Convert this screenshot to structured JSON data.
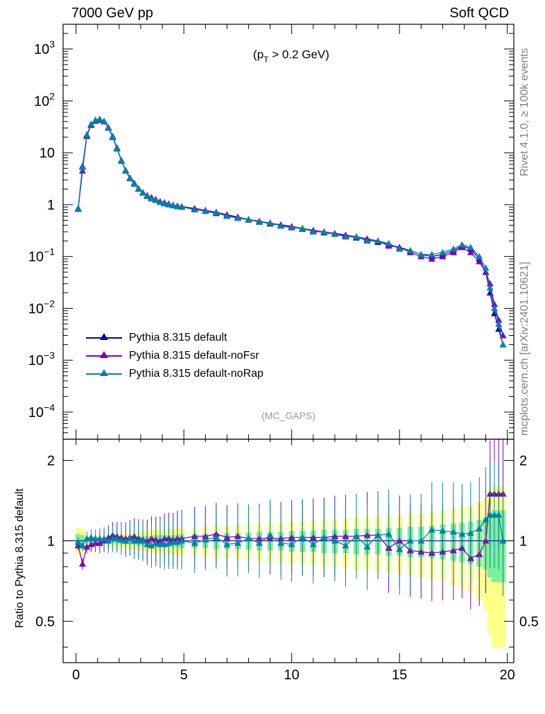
{
  "header": {
    "beam": "7000 GeV pp",
    "process": "Soft QCD",
    "rivet_label": "Rivet 4.1.0, ≥ 100k events",
    "source_label": "mcplots.cern.ch [arXiv:2401.10621]"
  },
  "main_plot": {
    "annotation_pre": "(p",
    "annotation_sub": "T",
    "annotation_post": " > 0.2 GeV)",
    "analysis": "(MC_GAPS)",
    "y_scale": "log",
    "y_tick_labels": [
      "10^-4",
      "10^-3",
      "10^-2",
      "10^-1",
      "1",
      "10",
      "10^2",
      "10^3"
    ]
  },
  "ratio_plot": {
    "ylabel": "Ratio to Pythia 8.315 default",
    "y_tick_labels": [
      "0.5",
      "1",
      "2"
    ],
    "x_tick_labels": [
      "0",
      "5",
      "10",
      "15",
      "20"
    ]
  },
  "legend": [
    {
      "label": "Pythia 8.315 default",
      "color": "#0000cc"
    },
    {
      "label": "Pythia 8.315 default-noFsr",
      "color": "#7b00b4"
    },
    {
      "label": "Pythia 8.315 default-noRap",
      "color": "#0083a8"
    }
  ],
  "chart_data": {
    "type": "line",
    "title": "7000 GeV pp — Soft QCD",
    "xlabel": "",
    "ylabel": "",
    "xlim": [
      -0.6,
      20.3
    ],
    "ylim": [
      3e-05,
      3000
    ],
    "ratio_ylim": [
      0.35,
      2.4
    ],
    "x": [
      0.1,
      0.3,
      0.5,
      0.7,
      0.9,
      1.1,
      1.3,
      1.5,
      1.7,
      1.9,
      2.1,
      2.3,
      2.5,
      2.7,
      2.9,
      3.1,
      3.3,
      3.5,
      3.7,
      3.9,
      4.1,
      4.3,
      4.5,
      4.7,
      4.9,
      5.5,
      6.0,
      6.5,
      7.0,
      7.5,
      8.0,
      8.5,
      9.0,
      9.5,
      10.0,
      10.5,
      11.0,
      11.5,
      12.0,
      12.5,
      13.0,
      13.5,
      14.0,
      14.5,
      15.0,
      15.5,
      16.0,
      16.5,
      17.0,
      17.5,
      17.9,
      18.3,
      18.7,
      19.0,
      19.2,
      19.4,
      19.6,
      19.8
    ],
    "series": [
      {
        "name": "Pythia 8.315 default",
        "values": [
          0.85,
          5.5,
          22,
          35,
          42,
          44,
          40,
          30,
          20,
          12,
          7.0,
          4.5,
          3.2,
          2.5,
          2.0,
          1.7,
          1.5,
          1.35,
          1.25,
          1.15,
          1.08,
          1.02,
          0.97,
          0.93,
          0.9,
          0.82,
          0.75,
          0.68,
          0.62,
          0.56,
          0.51,
          0.47,
          0.43,
          0.4,
          0.37,
          0.34,
          0.31,
          0.29,
          0.27,
          0.25,
          0.23,
          0.21,
          0.19,
          0.17,
          0.15,
          0.13,
          0.11,
          0.1,
          0.11,
          0.13,
          0.16,
          0.14,
          0.09,
          0.05,
          0.02,
          0.008,
          0.004,
          0.002
        ]
      },
      {
        "name": "Pythia 8.315 default-noFsr",
        "values": [
          0.82,
          4.5,
          21,
          34,
          41,
          43,
          40,
          31,
          21,
          12.5,
          7.2,
          4.6,
          3.3,
          2.6,
          2.05,
          1.72,
          1.5,
          1.38,
          1.26,
          1.16,
          1.1,
          1.04,
          0.98,
          0.95,
          0.92,
          0.85,
          0.78,
          0.72,
          0.64,
          0.58,
          0.52,
          0.48,
          0.44,
          0.41,
          0.38,
          0.35,
          0.32,
          0.3,
          0.28,
          0.26,
          0.24,
          0.22,
          0.2,
          0.16,
          0.15,
          0.12,
          0.1,
          0.09,
          0.1,
          0.12,
          0.15,
          0.12,
          0.08,
          0.05,
          0.03,
          0.012,
          0.006,
          0.003
        ]
      },
      {
        "name": "Pythia 8.315 default-noRap",
        "values": [
          0.84,
          5.3,
          22.5,
          36,
          43,
          45,
          41,
          30,
          20.5,
          12.2,
          7.1,
          4.5,
          3.25,
          2.5,
          2.0,
          1.7,
          1.45,
          1.3,
          1.22,
          1.12,
          1.05,
          1.0,
          0.96,
          0.92,
          0.9,
          0.8,
          0.76,
          0.7,
          0.6,
          0.55,
          0.52,
          0.46,
          0.45,
          0.39,
          0.36,
          0.35,
          0.3,
          0.3,
          0.27,
          0.24,
          0.24,
          0.2,
          0.2,
          0.18,
          0.14,
          0.13,
          0.11,
          0.11,
          0.12,
          0.14,
          0.17,
          0.15,
          0.1,
          0.06,
          0.025,
          0.01,
          0.005,
          0.002
        ]
      }
    ],
    "ratio_series": [
      {
        "name": "Pythia 8.315 default-noFsr",
        "values": [
          0.96,
          0.82,
          0.95,
          0.97,
          0.98,
          0.98,
          1.0,
          1.03,
          1.05,
          1.04,
          1.03,
          1.02,
          1.03,
          1.04,
          1.02,
          1.01,
          1.0,
          1.02,
          1.01,
          1.0,
          1.02,
          1.02,
          1.01,
          1.02,
          1.02,
          1.04,
          1.04,
          1.06,
          1.03,
          1.04,
          1.02,
          1.02,
          1.02,
          1.02,
          1.03,
          1.03,
          1.03,
          1.03,
          1.04,
          1.04,
          1.04,
          1.05,
          1.05,
          0.94,
          1.0,
          0.92,
          0.91,
          0.9,
          0.91,
          0.92,
          0.94,
          0.86,
          0.89,
          1.0,
          1.5,
          1.5,
          1.5,
          1.5
        ]
      },
      {
        "name": "Pythia 8.315 default-noRap",
        "values": [
          0.99,
          0.96,
          1.02,
          1.03,
          1.02,
          1.02,
          1.02,
          1.0,
          1.02,
          1.02,
          1.01,
          1.0,
          1.02,
          1.0,
          1.0,
          1.0,
          0.97,
          0.96,
          0.98,
          0.97,
          0.97,
          0.98,
          0.99,
          0.99,
          1.0,
          0.98,
          1.01,
          1.03,
          0.97,
          0.98,
          1.02,
          0.98,
          1.05,
          0.98,
          0.97,
          1.03,
          0.97,
          1.03,
          1.0,
          0.96,
          1.04,
          0.95,
          1.05,
          1.06,
          0.93,
          1.0,
          1.0,
          1.1,
          1.09,
          1.08,
          1.06,
          1.07,
          1.11,
          1.2,
          1.25,
          1.25,
          1.25,
          1.0
        ]
      }
    ],
    "mc_uncertainty_band": {
      "yellow_halfwidth": [
        0.12,
        0.1,
        0.05,
        0.04,
        0.04,
        0.04,
        0.04,
        0.04,
        0.05,
        0.05,
        0.06,
        0.06,
        0.07,
        0.07,
        0.08,
        0.08,
        0.09,
        0.09,
        0.1,
        0.1,
        0.1,
        0.11,
        0.11,
        0.11,
        0.12,
        0.12,
        0.13,
        0.14,
        0.14,
        0.15,
        0.15,
        0.16,
        0.17,
        0.17,
        0.18,
        0.18,
        0.19,
        0.2,
        0.2,
        0.21,
        0.22,
        0.22,
        0.23,
        0.24,
        0.25,
        0.26,
        0.27,
        0.28,
        0.3,
        0.32,
        0.34,
        0.36,
        0.4,
        0.45,
        0.55,
        0.6,
        0.6,
        0.6
      ],
      "green_halfwidth": [
        0.06,
        0.05,
        0.02,
        0.02,
        0.02,
        0.02,
        0.02,
        0.02,
        0.02,
        0.02,
        0.03,
        0.03,
        0.03,
        0.03,
        0.04,
        0.04,
        0.04,
        0.04,
        0.05,
        0.05,
        0.05,
        0.05,
        0.05,
        0.05,
        0.06,
        0.06,
        0.06,
        0.07,
        0.07,
        0.07,
        0.07,
        0.08,
        0.08,
        0.08,
        0.09,
        0.09,
        0.09,
        0.1,
        0.1,
        0.1,
        0.11,
        0.11,
        0.11,
        0.12,
        0.12,
        0.13,
        0.13,
        0.14,
        0.15,
        0.16,
        0.17,
        0.18,
        0.2,
        0.22,
        0.27,
        0.3,
        0.3,
        0.3
      ]
    },
    "annotations": [
      "(pT > 0.2 GeV)",
      "(MC_GAPS)"
    ]
  }
}
